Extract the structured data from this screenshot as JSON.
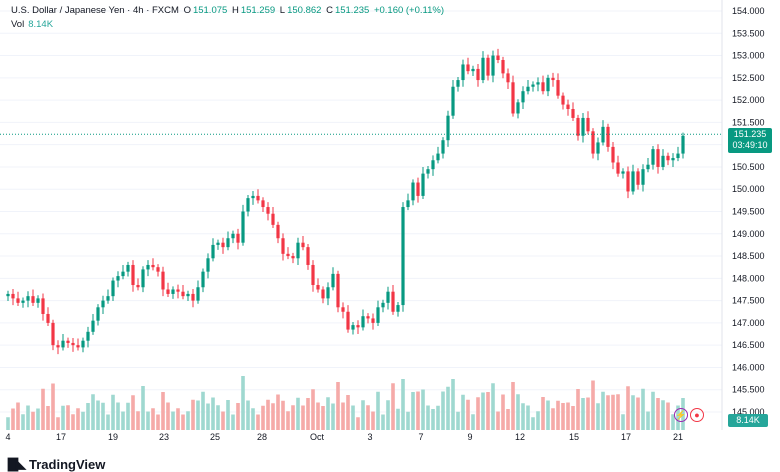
{
  "legend": {
    "symbol": "U.S. Dollar / Japanese Yen · 4h · FXCM",
    "o_label": "O",
    "o_value": "151.075",
    "h_label": "H",
    "h_value": "151.259",
    "l_label": "L",
    "l_value": "150.862",
    "c_label": "C",
    "c_value": "151.235",
    "change": "+0.160 (+0.11%)",
    "vol_label": "Vol",
    "vol_value": "8.14K"
  },
  "price_label": {
    "price": "151.235",
    "countdown": "03:49:10"
  },
  "volume_label": "8.14K",
  "brand": {
    "name": "TradingView"
  },
  "icons": {
    "flash": "flash-icon",
    "alert": "red-dot-icon"
  },
  "colors": {
    "up": "#089981",
    "down": "#f23645",
    "vol_up": "#9fd8d0",
    "vol_down": "#f5aaa8",
    "grid": "#f0f3fa"
  },
  "chart_data": {
    "type": "candlestick",
    "y_ticks": [
      "154.000",
      "153.500",
      "153.000",
      "152.500",
      "152.000",
      "151.500",
      "151.000",
      "150.500",
      "150.000",
      "149.500",
      "149.000",
      "148.500",
      "148.000",
      "147.500",
      "147.000",
      "146.500",
      "146.000",
      "145.500",
      "145.000"
    ],
    "x_ticks": [
      "4",
      "17",
      "19",
      "23",
      "25",
      "28",
      "Oct",
      "3",
      "7",
      "9",
      "12",
      "15",
      "17",
      "21"
    ],
    "ylim": [
      145.0,
      154.0
    ],
    "last_price": 151.235,
    "closes": [
      147.65,
      147.55,
      147.45,
      147.5,
      147.6,
      147.45,
      147.55,
      147.2,
      147.0,
      146.5,
      146.45,
      146.6,
      146.55,
      146.5,
      146.45,
      146.6,
      146.8,
      147.05,
      147.35,
      147.5,
      147.6,
      147.95,
      148.05,
      148.15,
      148.3,
      147.85,
      147.8,
      148.2,
      148.3,
      148.25,
      148.15,
      147.75,
      147.65,
      147.75,
      147.7,
      147.6,
      147.65,
      147.5,
      147.8,
      148.15,
      148.45,
      148.75,
      148.8,
      148.7,
      148.9,
      149.0,
      148.8,
      149.5,
      149.8,
      149.85,
      149.75,
      149.6,
      149.45,
      149.2,
      148.9,
      148.55,
      148.5,
      148.45,
      148.8,
      148.7,
      148.3,
      147.85,
      147.75,
      147.55,
      147.8,
      148.1,
      147.35,
      147.25,
      146.85,
      146.95,
      146.9,
      147.15,
      147.1,
      147.0,
      147.35,
      147.45,
      147.7,
      147.25,
      147.4,
      149.6,
      149.75,
      150.15,
      149.85,
      150.35,
      150.45,
      150.65,
      150.8,
      151.1,
      151.65,
      152.3,
      152.45,
      152.8,
      152.65,
      152.7,
      152.45,
      152.95,
      152.55,
      153.0,
      152.9,
      152.6,
      152.4,
      151.7,
      151.95,
      152.2,
      152.3,
      152.35,
      152.4,
      152.2,
      152.5,
      152.45,
      152.1,
      151.9,
      151.8,
      151.6,
      151.2,
      151.6,
      151.3,
      150.8,
      151.05,
      151.4,
      150.95,
      150.6,
      150.35,
      150.4,
      149.95,
      150.4,
      150.1,
      150.45,
      150.55,
      150.9,
      150.5,
      150.75,
      150.65,
      150.7,
      150.8,
      151.2
    ]
  }
}
